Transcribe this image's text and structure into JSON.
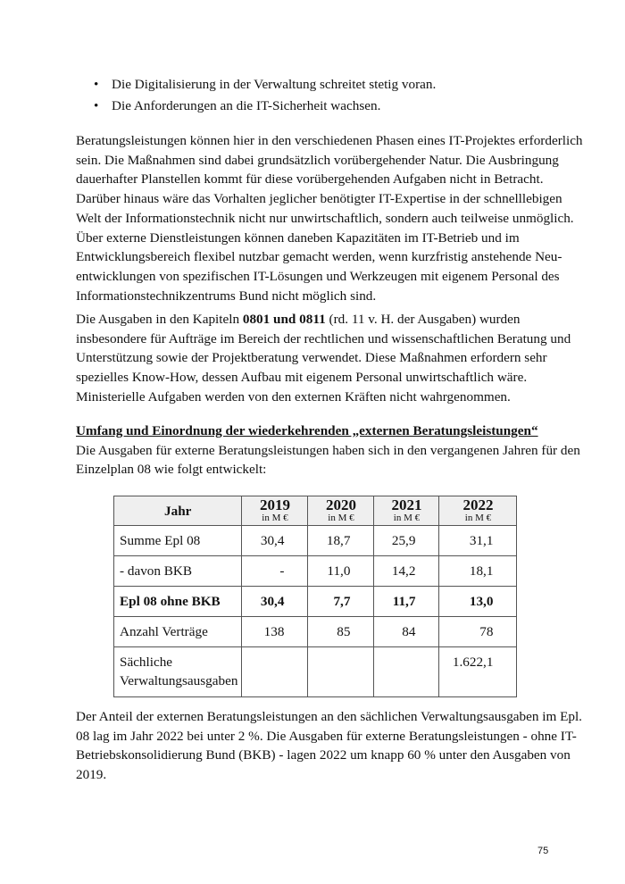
{
  "bullets": [
    "Die Digitalisierung in der Verwaltung schreitet stetig voran.",
    "Die Anforderungen an die IT-Sicherheit wachsen."
  ],
  "paragraph1": [
    "Beratungsleistungen können hier in den verschiedenen Phasen eines IT-Projektes erforderlich",
    "sein. Die Maßnahmen sind dabei grundsätzlich vorübergehender Natur. Die Ausbringung",
    "dauerhafter Planstellen kommt für diese vorübergehenden Aufgaben nicht in Betracht.",
    "Darüber hinaus wäre das Vorhalten jeglicher benötigter IT-Expertise in der schnelllebigen",
    "Welt der Informationstechnik nicht nur unwirtschaftlich, sondern auch teilweise unmöglich.",
    "Über externe Dienstleistungen können daneben Kapazitäten im IT-Betrieb und im",
    "Entwicklungsbereich flexibel nutzbar gemacht werden, wenn kurzfristig anstehende Neu-",
    "entwicklungen von spezifischen IT-Lösungen und Werkzeugen mit eigenem Personal des",
    "Informationstechnikzentrums Bund nicht möglich sind."
  ],
  "paragraph2": {
    "first_pre": "Die Ausgaben in den Kapiteln ",
    "first_bold": "0801 und 0811",
    "first_post": " (rd. 11 v. H. der Ausgaben) wurden",
    "lines": [
      "insbesondere für Aufträge im Bereich der rechtlichen und wissenschaftlichen Beratung und",
      "Unterstützung sowie der Projektberatung verwendet. Diese Maßnahmen erfordern sehr",
      "spezielles Know-How, dessen Aufbau mit eigenem Personal unwirtschaftlich wäre.",
      "Ministerielle Aufgaben werden von den externen Kräften nicht wahrgenommen."
    ]
  },
  "section": {
    "heading": "Umfang und Einordnung der wiederkehrenden „externen Beratungsleistungen“",
    "lines": [
      "Die Ausgaben für externe Beratungsleistungen haben sich in den vergangenen Jahren für den",
      "Einzelplan 08 wie folgt entwickelt:"
    ]
  },
  "table": {
    "header": {
      "label": "Jahr",
      "years": [
        "2019",
        "2020",
        "2021",
        "2022"
      ],
      "unit": "in M €"
    },
    "rows": [
      {
        "label": "Summe Epl 08",
        "values": [
          "30,4",
          "18,7",
          "25,9",
          "31,1"
        ]
      },
      {
        "label": "- davon BKB",
        "values": [
          "-",
          "11,0",
          "14,2",
          "18,1"
        ]
      },
      {
        "label": "Epl 08 ohne BKB",
        "values": [
          "30,4",
          "7,7",
          "11,7",
          "13,0"
        ],
        "bold": true
      },
      {
        "label": "Anzahl Verträge",
        "values": [
          "138",
          "85",
          "84",
          "78"
        ]
      },
      {
        "label_lines": [
          "Sächliche",
          "Verwaltungsausgaben"
        ],
        "values": [
          "",
          "",
          "",
          "1.622,1"
        ]
      }
    ]
  },
  "paragraph3": [
    "Der Anteil der externen Beratungsleistungen an den sächlichen Verwaltungsausgaben im Epl.",
    "08 lag im Jahr 2022 bei unter 2 %. Die Ausgaben für externe Beratungsleistungen - ohne IT-",
    "Betriebskonsolidierung Bund (BKB) - lagen 2022 um knapp 60 % unter den Ausgaben von",
    "2019."
  ],
  "page_number": "75"
}
